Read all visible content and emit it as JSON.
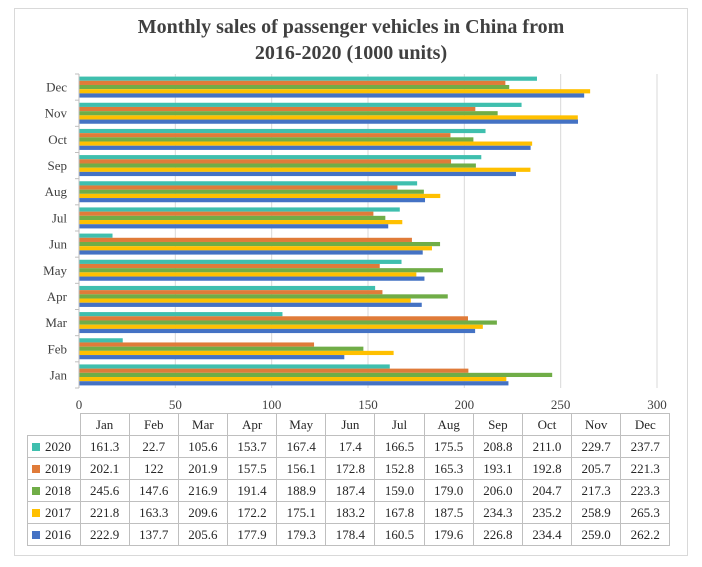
{
  "chart_data": {
    "type": "bar",
    "orientation": "horizontal",
    "title": "Monthly sales of passenger vehicles in China from 2016-2020  (1000 units)",
    "title_lines": [
      "Monthly sales of passenger vehicles in China from",
      "2016-2020  (1000 units)"
    ],
    "categories": [
      "Jan",
      "Feb",
      "Mar",
      "Apr",
      "May",
      "Jun",
      "Jul",
      "Aug",
      "Sep",
      "Oct",
      "Nov",
      "Dec"
    ],
    "xlim": [
      0,
      300
    ],
    "x_ticks": [
      "0",
      "50",
      "100",
      "150",
      "200",
      "250",
      "300"
    ],
    "grid": true,
    "legend": "data-table",
    "series": [
      {
        "name": "2020",
        "color": "#3fbfae",
        "values": [
          161.3,
          22.7,
          105.6,
          153.7,
          167.4,
          17.4,
          166.5,
          175.5,
          208.8,
          211.0,
          229.7,
          237.7
        ],
        "labels": [
          "161.3",
          "22.7",
          "105.6",
          "153.7",
          "167.4",
          "17.4",
          "166.5",
          "175.5",
          "208.8",
          "211.0",
          "229.7",
          "237.7"
        ]
      },
      {
        "name": "2019",
        "color": "#e07b39",
        "values": [
          202.1,
          122,
          201.9,
          157.5,
          156.1,
          172.8,
          152.8,
          165.3,
          193.1,
          192.8,
          205.7,
          221.3
        ],
        "labels": [
          "202.1",
          "122",
          "201.9",
          "157.5",
          "156.1",
          "172.8",
          "152.8",
          "165.3",
          "193.1",
          "192.8",
          "205.7",
          "221.3"
        ]
      },
      {
        "name": "2018",
        "color": "#70ad47",
        "values": [
          245.6,
          147.6,
          216.9,
          191.4,
          188.9,
          187.4,
          159.0,
          179.0,
          206.0,
          204.7,
          217.3,
          223.3
        ],
        "labels": [
          "245.6",
          "147.6",
          "216.9",
          "191.4",
          "188.9",
          "187.4",
          "159.0",
          "179.0",
          "206.0",
          "204.7",
          "217.3",
          "223.3"
        ]
      },
      {
        "name": "2017",
        "color": "#ffc000",
        "values": [
          221.8,
          163.3,
          209.6,
          172.2,
          175.1,
          183.2,
          167.8,
          187.5,
          234.3,
          235.2,
          258.9,
          265.3
        ],
        "labels": [
          "221.8",
          "163.3",
          "209.6",
          "172.2",
          "175.1",
          "183.2",
          "167.8",
          "187.5",
          "234.3",
          "235.2",
          "258.9",
          "265.3"
        ]
      },
      {
        "name": "2016",
        "color": "#4472c4",
        "values": [
          222.9,
          137.7,
          205.6,
          177.9,
          179.3,
          178.4,
          160.5,
          179.6,
          226.8,
          234.4,
          259.0,
          262.2
        ],
        "labels": [
          "222.9",
          "137.7",
          "205.6",
          "177.9",
          "179.3",
          "178.4",
          "160.5",
          "179.6",
          "226.8",
          "234.4",
          "259.0",
          "262.2"
        ]
      }
    ]
  }
}
